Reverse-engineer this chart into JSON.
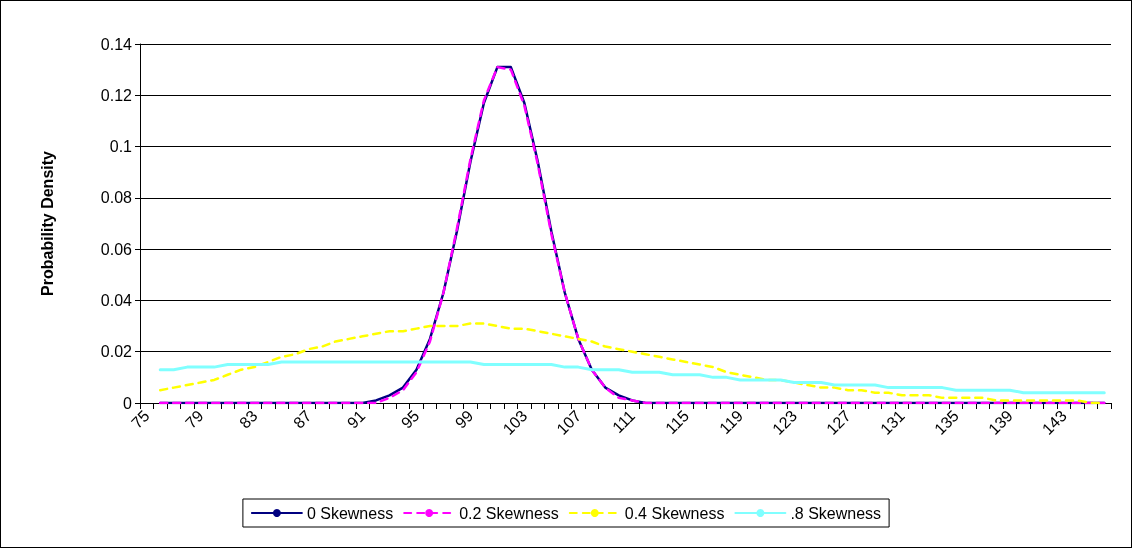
{
  "chart_data": {
    "type": "line",
    "ylabel": "Probability Density",
    "categories": [
      "75",
      null,
      null,
      null,
      "79",
      null,
      null,
      null,
      "83",
      null,
      null,
      null,
      "87",
      null,
      null,
      null,
      "91",
      null,
      null,
      null,
      "95",
      null,
      null,
      null,
      "99",
      null,
      null,
      null,
      "103",
      null,
      null,
      null,
      "107",
      null,
      null,
      null,
      "111",
      null,
      null,
      null,
      "115",
      null,
      null,
      null,
      "119",
      null,
      null,
      null,
      "123",
      null,
      null,
      null,
      "127",
      null,
      null,
      null,
      "131",
      null,
      null,
      null,
      "135",
      null,
      null,
      null,
      "139",
      null,
      null,
      null,
      "143",
      null,
      null,
      null
    ],
    "series": [
      {
        "name": "0 Skewness",
        "color": "#000080",
        "line_style": "solid",
        "values": [
          null,
          0,
          0,
          0,
          0,
          0,
          0,
          0,
          0,
          0,
          0,
          0,
          0,
          0,
          0,
          0,
          0,
          0.001,
          0.003,
          0.006,
          0.013,
          0.025,
          0.043,
          0.067,
          0.094,
          0.117,
          0.131,
          0.131,
          0.117,
          0.094,
          0.067,
          0.043,
          0.025,
          0.013,
          0.006,
          0.003,
          0.001,
          0,
          0,
          0,
          0,
          0,
          0,
          0,
          0,
          0,
          0,
          0,
          0,
          0,
          0,
          0,
          0,
          0,
          0,
          0,
          0,
          0,
          0,
          0,
          0,
          0,
          0,
          0,
          0,
          0,
          0,
          0,
          0,
          0,
          0,
          0
        ]
      },
      {
        "name": "0.2 Skewness",
        "color": "#ff00ff",
        "line_style": "dashed",
        "values": [
          null,
          0,
          0,
          0,
          0,
          0,
          0,
          0,
          0,
          0,
          0,
          0,
          0,
          0,
          0,
          0,
          0,
          0,
          0.002,
          0.005,
          0.012,
          0.024,
          0.043,
          0.068,
          0.095,
          0.118,
          0.131,
          0.13,
          0.116,
          0.093,
          0.066,
          0.043,
          0.025,
          0.013,
          0.006,
          0.002,
          0.001,
          0,
          0,
          0,
          0,
          0,
          0,
          0,
          0,
          0,
          0,
          0,
          0,
          0,
          0,
          0,
          0,
          0,
          0,
          0,
          0,
          0,
          0,
          0,
          0,
          0,
          0,
          0,
          0,
          0,
          0,
          0,
          0,
          0,
          0,
          0
        ]
      },
      {
        "name": "0.4 Skewness",
        "color": "#ffff00",
        "line_style": "dashed",
        "values": [
          null,
          0.005,
          0.006,
          0.007,
          0.008,
          0.009,
          0.011,
          0.013,
          0.014,
          0.016,
          0.018,
          0.019,
          0.021,
          0.022,
          0.024,
          0.025,
          0.026,
          0.027,
          0.028,
          0.028,
          0.029,
          0.03,
          0.03,
          0.03,
          0.031,
          0.031,
          0.03,
          0.029,
          0.029,
          0.028,
          0.027,
          0.026,
          0.025,
          0.024,
          0.022,
          0.021,
          0.02,
          0.019,
          0.018,
          0.017,
          0.016,
          0.015,
          0.014,
          0.012,
          0.011,
          0.01,
          0.009,
          0.009,
          0.008,
          0.007,
          0.006,
          0.006,
          0.005,
          0.005,
          0.004,
          0.004,
          0.003,
          0.003,
          0.003,
          0.002,
          0.002,
          0.002,
          0.002,
          0.001,
          0.001,
          0.001,
          0.001,
          0.001,
          0.001,
          0.001,
          0,
          0
        ]
      },
      {
        "name": ".8 Skewness",
        "color": "#80ffff",
        "line_style": "solid",
        "values": [
          null,
          0.013,
          0.013,
          0.014,
          0.014,
          0.014,
          0.015,
          0.015,
          0.015,
          0.015,
          0.016,
          0.016,
          0.016,
          0.016,
          0.016,
          0.016,
          0.016,
          0.016,
          0.016,
          0.016,
          0.016,
          0.016,
          0.016,
          0.016,
          0.016,
          0.015,
          0.015,
          0.015,
          0.015,
          0.015,
          0.015,
          0.014,
          0.014,
          0.013,
          0.013,
          0.013,
          0.012,
          0.012,
          0.012,
          0.011,
          0.011,
          0.011,
          0.01,
          0.01,
          0.009,
          0.009,
          0.009,
          0.009,
          0.008,
          0.008,
          0.008,
          0.007,
          0.007,
          0.007,
          0.007,
          0.006,
          0.006,
          0.006,
          0.006,
          0.006,
          0.005,
          0.005,
          0.005,
          0.005,
          0.005,
          0.004,
          0.004,
          0.004,
          0.004,
          0.004,
          0.004,
          0.004
        ]
      }
    ],
    "ylim": [
      0,
      0.14
    ],
    "yticks": [
      0,
      0.02,
      0.04,
      0.06,
      0.08,
      0.1,
      0.12,
      0.14
    ],
    "grid": "y",
    "legend": "bottom",
    "marker": "none"
  }
}
